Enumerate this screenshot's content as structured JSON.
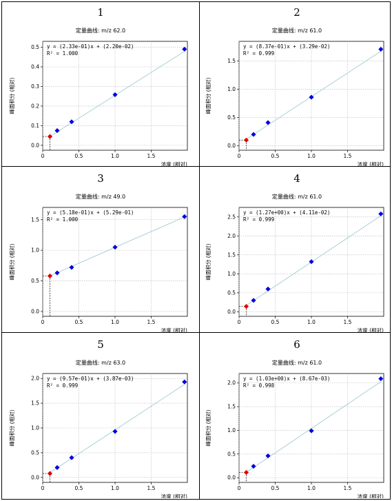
{
  "chart_data": [
    {
      "type": "scatter",
      "panel_number": "1",
      "title": "定量曲线: m/z 62.0",
      "equation": "y = (2.33e-01)x + (2.20e-02)",
      "r2_text": "R² = 1.000",
      "xlabel": "浓度 (相对)",
      "ylabel": "峰面积分 (相对)",
      "xlim": [
        0,
        2.0
      ],
      "ylim": [
        -0.025,
        0.53
      ],
      "x_ticks": [
        0,
        0.5,
        1.0,
        1.5
      ],
      "x_tick_labels": [
        "0",
        "0.5",
        "1.0",
        "1.5"
      ],
      "y_ticks": [
        0,
        0.1,
        0.2,
        0.3,
        0.4,
        0.5
      ],
      "y_tick_labels": [
        "0.0",
        "0.1",
        "0.2",
        "0.3",
        "0.4",
        "0.5"
      ],
      "grid": true,
      "series": [
        {
          "color": "#0000e0",
          "x": [
            0.2,
            0.4,
            1.0,
            1.96
          ],
          "y": [
            0.075,
            0.12,
            0.258,
            0.49
          ]
        },
        {
          "color": "#e00000",
          "x": [
            0.1
          ],
          "y": [
            0.045
          ]
        }
      ],
      "fit": {
        "slope": 0.233,
        "intercept": 0.022
      }
    },
    {
      "type": "scatter",
      "panel_number": "2",
      "title": "定量曲线: m/z 61.0",
      "equation": "y = (8.37e-01)x + (3.29e-02)",
      "r2_text": "R² = 0.999",
      "xlabel": "浓度 (相对)",
      "ylabel": "峰面积分 (相对)",
      "xlim": [
        0,
        2.0
      ],
      "ylim": [
        -0.08,
        1.85
      ],
      "x_ticks": [
        0,
        0.5,
        1.0,
        1.5
      ],
      "x_tick_labels": [
        "0",
        "0.5",
        "1.0",
        "1.5"
      ],
      "y_ticks": [
        0,
        0.5,
        1.0,
        1.5
      ],
      "y_tick_labels": [
        "0.0",
        "0.5",
        "1.0",
        "1.5"
      ],
      "grid": true,
      "series": [
        {
          "color": "#0000e0",
          "x": [
            0.2,
            0.4,
            1.0,
            1.96
          ],
          "y": [
            0.2,
            0.41,
            0.86,
            1.71
          ]
        },
        {
          "color": "#e00000",
          "x": [
            0.1
          ],
          "y": [
            0.1
          ]
        }
      ],
      "fit": {
        "slope": 0.837,
        "intercept": 0.0329
      }
    },
    {
      "type": "scatter",
      "panel_number": "3",
      "title": "定量曲线: m/z 49.0",
      "equation": "y = (5.18e-01)x + (5.29e-01)",
      "r2_text": "R² = 1.000",
      "xlabel": "浓度 (相对)",
      "ylabel": "峰面积分 (相对)",
      "xlim": [
        0,
        2.0
      ],
      "ylim": [
        -0.08,
        1.7
      ],
      "x_ticks": [
        0,
        0.5,
        1.0,
        1.5
      ],
      "x_tick_labels": [
        "0",
        "0.5",
        "1.0",
        "1.5"
      ],
      "y_ticks": [
        0,
        0.5,
        1.0,
        1.5
      ],
      "y_tick_labels": [
        "0.0",
        "0.5",
        "1.0",
        "1.5"
      ],
      "grid": true,
      "series": [
        {
          "color": "#0000e0",
          "x": [
            0.2,
            0.4,
            1.0,
            1.96
          ],
          "y": [
            0.63,
            0.72,
            1.05,
            1.55
          ]
        },
        {
          "color": "#e00000",
          "x": [
            0.1
          ],
          "y": [
            0.58
          ]
        }
      ],
      "fit": {
        "slope": 0.518,
        "intercept": 0.529
      }
    },
    {
      "type": "scatter",
      "panel_number": "4",
      "title": "定量曲线: m/z 61.0",
      "equation": "y = (1.27e+00)x + (4.11e-02)",
      "r2_text": "R² = 0.999",
      "xlabel": "浓度 (相对)",
      "ylabel": "峰面积分 (相对)",
      "xlim": [
        0,
        2.0
      ],
      "ylim": [
        -0.12,
        2.75
      ],
      "x_ticks": [
        0,
        0.5,
        1.0,
        1.5
      ],
      "x_tick_labels": [
        "0",
        "0.5",
        "1.0",
        "1.5"
      ],
      "y_ticks": [
        0,
        0.5,
        1.0,
        1.5,
        2.0,
        2.5
      ],
      "y_tick_labels": [
        "0.0",
        "0.5",
        "1.0",
        "1.5",
        "2.0",
        "2.5"
      ],
      "grid": true,
      "series": [
        {
          "color": "#0000e0",
          "x": [
            0.2,
            0.4,
            1.0,
            1.96
          ],
          "y": [
            0.3,
            0.6,
            1.32,
            2.58
          ]
        },
        {
          "color": "#e00000",
          "x": [
            0.1
          ],
          "y": [
            0.14
          ]
        }
      ],
      "fit": {
        "slope": 1.27,
        "intercept": 0.0411
      }
    },
    {
      "type": "scatter",
      "panel_number": "5",
      "title": "定量曲线: m/z 63.0",
      "equation": "y = (9.57e-01)x + (3.87e-03)",
      "r2_text": "R² = 0.999",
      "xlabel": "浓度 (相对)",
      "ylabel": "峰面积分 (相对)",
      "xlim": [
        0,
        2.0
      ],
      "ylim": [
        -0.1,
        2.1
      ],
      "x_ticks": [
        0,
        0.5,
        1.0,
        1.5
      ],
      "x_tick_labels": [
        "0",
        "0.5",
        "1.0",
        "1.5"
      ],
      "y_ticks": [
        0,
        0.5,
        1.0,
        1.5,
        2.0
      ],
      "y_tick_labels": [
        "0.0",
        "0.5",
        "1.0",
        "1.5",
        "2.0"
      ],
      "grid": true,
      "series": [
        {
          "color": "#0000e0",
          "x": [
            0.2,
            0.4,
            1.0,
            1.96
          ],
          "y": [
            0.2,
            0.4,
            0.93,
            1.93
          ]
        },
        {
          "color": "#e00000",
          "x": [
            0.1
          ],
          "y": [
            0.08
          ]
        }
      ],
      "fit": {
        "slope": 0.957,
        "intercept": 0.00387
      }
    },
    {
      "type": "scatter",
      "panel_number": "6",
      "title": "定量曲线: m/z 61.0",
      "equation": "y = (1.03e+00)x + (8.67e-03)",
      "r2_text": "R² = 0.998",
      "xlabel": "浓度 (相对)",
      "ylabel": "峰面积分 (相对)",
      "xlim": [
        0,
        2.0
      ],
      "ylim": [
        -0.1,
        2.2
      ],
      "x_ticks": [
        0,
        0.5,
        1.0,
        1.5
      ],
      "x_tick_labels": [
        "0",
        "0.5",
        "1.0",
        "1.5"
      ],
      "y_ticks": [
        0,
        0.5,
        1.0,
        1.5,
        2.0
      ],
      "y_tick_labels": [
        "0.0",
        "0.5",
        "1.0",
        "1.5",
        "2.0"
      ],
      "grid": true,
      "series": [
        {
          "color": "#0000e0",
          "x": [
            0.2,
            0.4,
            1.0,
            1.96
          ],
          "y": [
            0.24,
            0.46,
            0.99,
            2.09
          ]
        },
        {
          "color": "#e00000",
          "x": [
            0.1
          ],
          "y": [
            0.11
          ]
        }
      ],
      "fit": {
        "slope": 1.03,
        "intercept": 0.00867
      }
    }
  ]
}
